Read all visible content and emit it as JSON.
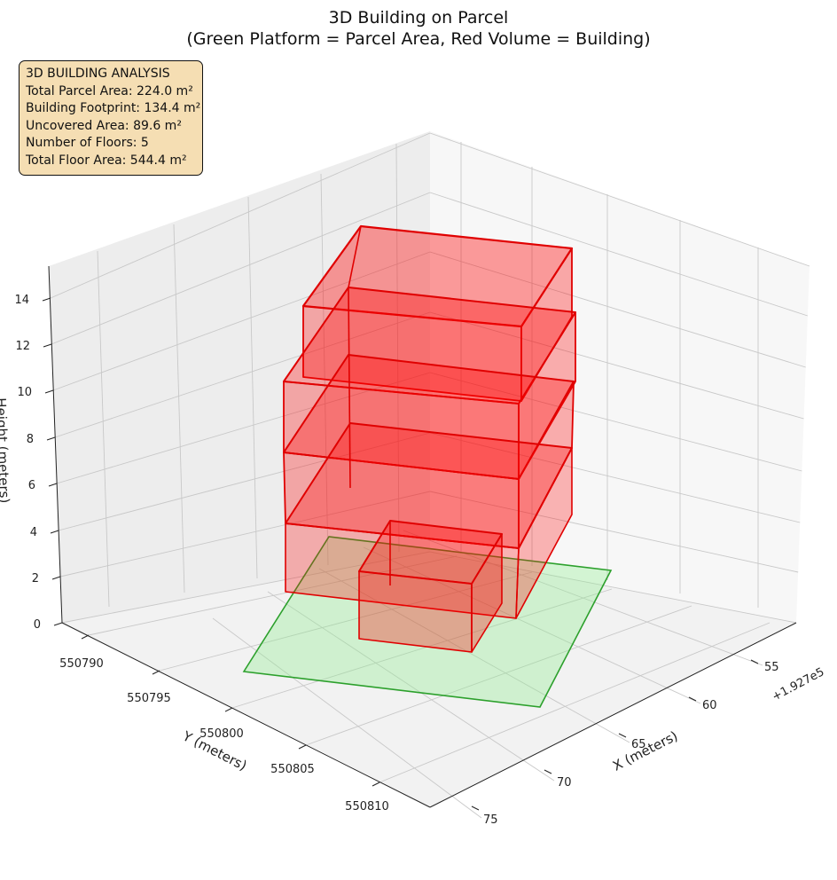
{
  "chart_data": {
    "type": "3d-box",
    "title": "3D Building on Parcel",
    "subtitle": "(Green Platform = Parcel Area, Red Volume = Building)",
    "xlabel": "X (meters)",
    "ylabel": "Y (meters)",
    "zlabel": "Height (meters)",
    "x_offset_label": "+1.927e5",
    "x_ticks": [
      "55",
      "60",
      "65",
      "70",
      "75"
    ],
    "y_ticks": [
      "550790",
      "550795",
      "550800",
      "550805",
      "550810"
    ],
    "z_ticks": [
      "0",
      "2",
      "4",
      "6",
      "8",
      "10",
      "12",
      "14"
    ],
    "grid": true,
    "parcel_color": "#90ee90",
    "building_color": "#ff0000",
    "analysis": {
      "heading": "3D BUILDING ANALYSIS",
      "parcel_area": "Total Parcel Area: 224.0 m²",
      "footprint": "Building Footprint: 134.4 m²",
      "uncovered": "Uncovered Area: 89.6 m²",
      "floors": "Number of Floors: 5",
      "floor_area": "Total Floor Area: 544.4 m²"
    }
  }
}
